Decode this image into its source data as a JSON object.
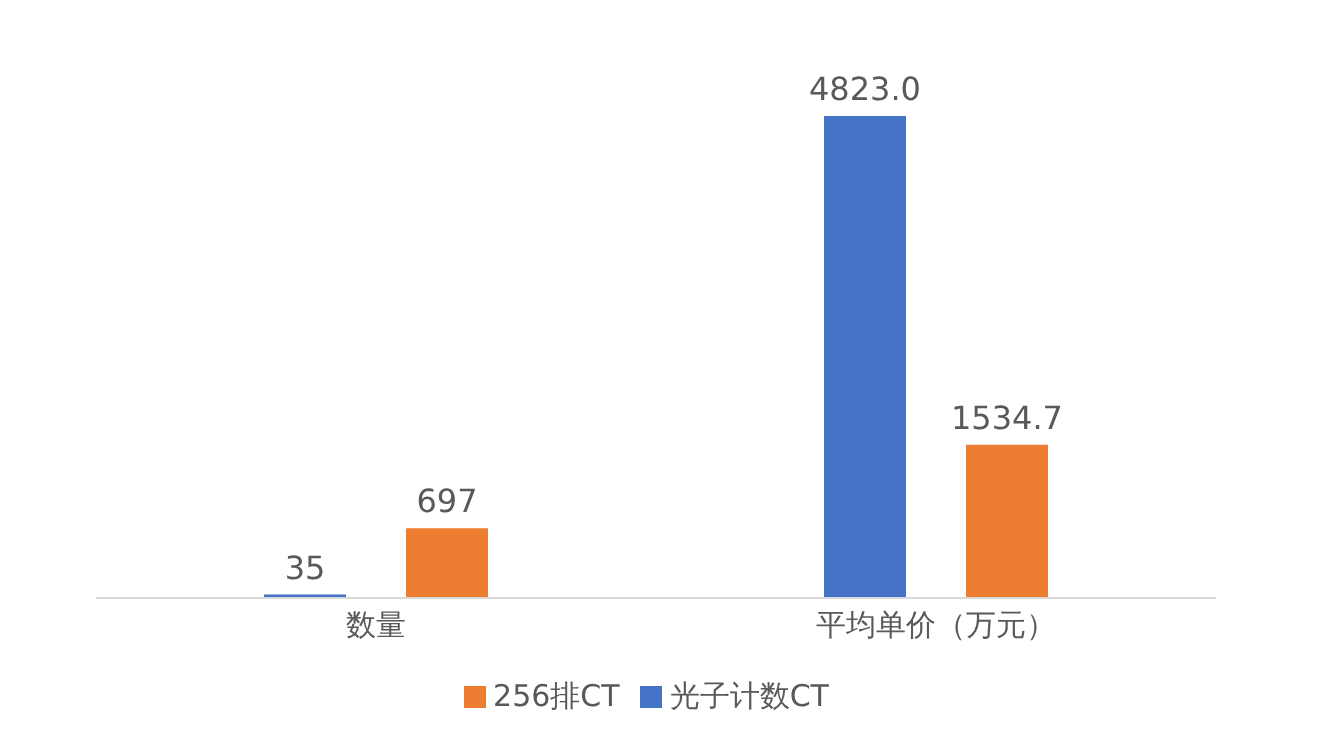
{
  "chart_data": {
    "type": "bar",
    "categories": [
      "数量",
      "平均单价（万元）"
    ],
    "series": [
      {
        "name": "光子计数CT",
        "color": "#4472c4",
        "values": [
          35,
          4823.0
        ],
        "value_labels": [
          "35",
          "4823.0"
        ]
      },
      {
        "name": "256排CT",
        "color": "#ed7d31",
        "values": [
          697,
          1534.7
        ],
        "value_labels": [
          "697",
          "1534.7"
        ]
      }
    ],
    "legend": "bottom"
  }
}
